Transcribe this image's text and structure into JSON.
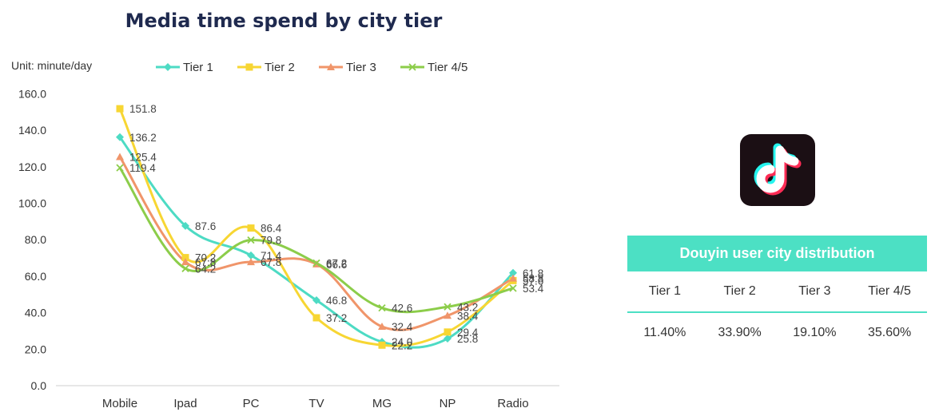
{
  "chart_data": {
    "type": "line",
    "title": "Media time spend by city tier",
    "unit_label": "Unit: minute/day",
    "categories": [
      "Mobile",
      "Ipad",
      "PC",
      "TV",
      "MG",
      "NP",
      "Radio"
    ],
    "ylim": [
      0,
      160
    ],
    "yticks": [
      "0.0",
      "20.0",
      "40.0",
      "60.0",
      "80.0",
      "100.0",
      "120.0",
      "140.0",
      "160.0"
    ],
    "legend_position": "top",
    "series": [
      {
        "name": "Tier 1",
        "color": "#4ddbc4",
        "marker": "diamond",
        "values": [
          136.2,
          87.6,
          71.4,
          46.8,
          24.0,
          25.8,
          61.8
        ]
      },
      {
        "name": "Tier 2",
        "color": "#f7d633",
        "marker": "square",
        "values": [
          151.8,
          70.2,
          86.4,
          37.2,
          22.2,
          29.4,
          57.6
        ]
      },
      {
        "name": "Tier 3",
        "color": "#f0956a",
        "marker": "triangle",
        "values": [
          125.4,
          67.8,
          67.8,
          66.6,
          32.4,
          38.4,
          58.8
        ]
      },
      {
        "name": "Tier 4/5",
        "color": "#8ccd4a",
        "marker": "x",
        "values": [
          119.4,
          64.2,
          79.8,
          67.2,
          42.6,
          43.2,
          53.4
        ]
      }
    ]
  },
  "distribution": {
    "title": "Douyin user city distribution",
    "accent": "#4ce0c4",
    "tiers": [
      "Tier 1",
      "Tier 2",
      "Tier 3",
      "Tier 4/5"
    ],
    "values": [
      "11.40%",
      "33.90%",
      "19.10%",
      "35.60%"
    ]
  },
  "logo_icon": "douyin-logo-icon"
}
